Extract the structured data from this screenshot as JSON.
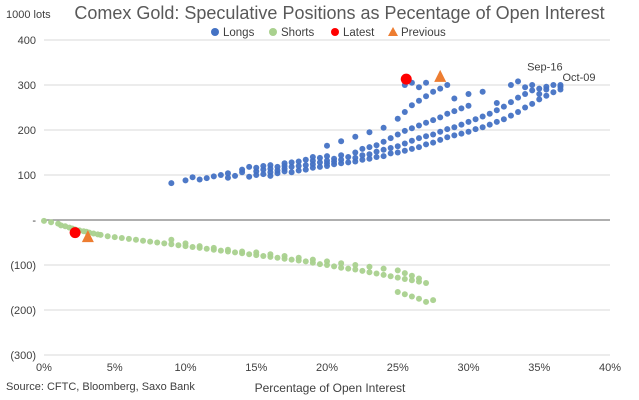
{
  "chart_data": {
    "type": "scatter",
    "title": "Comex Gold: Speculative Positions as Pecentage of Open Interest",
    "y_unit_label": "1000 lots",
    "xlabel": "Percentage  of Open Interest",
    "source": "Source: CFTC, Bloomberg, Saxo Bank",
    "xlim": [
      0,
      0.4
    ],
    "ylim": [
      -300,
      400
    ],
    "x_ticks": [
      0,
      0.05,
      0.1,
      0.15,
      0.2,
      0.25,
      0.3,
      0.35,
      0.4
    ],
    "x_tick_labels": [
      "0%",
      "5%",
      "10%",
      "15%",
      "20%",
      "25%",
      "30%",
      "35%",
      "40%"
    ],
    "y_ticks": [
      -300,
      -200,
      -100,
      0,
      100,
      200,
      300,
      400
    ],
    "y_tick_labels": [
      "(300)",
      "(200)",
      "(100)",
      "-",
      "100",
      "200",
      "300",
      "400"
    ],
    "grid": "horizontal",
    "legend_position": "top",
    "legend": [
      {
        "label": "Longs",
        "marker": "circle",
        "color": "#4472C4"
      },
      {
        "label": "Shorts",
        "marker": "circle",
        "color": "#A9D18E"
      },
      {
        "label": "Latest",
        "marker": "circle",
        "color": "#FF0000"
      },
      {
        "label": "Previous",
        "marker": "triangle",
        "color": "#ED7D31"
      }
    ],
    "series": [
      {
        "name": "Longs",
        "color": "#4472C4",
        "points": [
          [
            0.09,
            82
          ],
          [
            0.1,
            88
          ],
          [
            0.105,
            95
          ],
          [
            0.11,
            90
          ],
          [
            0.115,
            93
          ],
          [
            0.12,
            97
          ],
          [
            0.125,
            100
          ],
          [
            0.13,
            94
          ],
          [
            0.13,
            104
          ],
          [
            0.135,
            98
          ],
          [
            0.14,
            106
          ],
          [
            0.14,
            112
          ],
          [
            0.145,
            96
          ],
          [
            0.145,
            118
          ],
          [
            0.15,
            100
          ],
          [
            0.15,
            108
          ],
          [
            0.15,
            116
          ],
          [
            0.155,
            102
          ],
          [
            0.155,
            112
          ],
          [
            0.155,
            120
          ],
          [
            0.16,
            98
          ],
          [
            0.16,
            106
          ],
          [
            0.16,
            114
          ],
          [
            0.16,
            122
          ],
          [
            0.165,
            104
          ],
          [
            0.165,
            110
          ],
          [
            0.165,
            118
          ],
          [
            0.17,
            108
          ],
          [
            0.17,
            114
          ],
          [
            0.17,
            120
          ],
          [
            0.17,
            126
          ],
          [
            0.175,
            106
          ],
          [
            0.175,
            118
          ],
          [
            0.175,
            128
          ],
          [
            0.18,
            110
          ],
          [
            0.18,
            120
          ],
          [
            0.18,
            130
          ],
          [
            0.185,
            112
          ],
          [
            0.185,
            122
          ],
          [
            0.185,
            134
          ],
          [
            0.19,
            116
          ],
          [
            0.19,
            124
          ],
          [
            0.19,
            132
          ],
          [
            0.19,
            140
          ],
          [
            0.195,
            118
          ],
          [
            0.195,
            128
          ],
          [
            0.195,
            138
          ],
          [
            0.2,
            120
          ],
          [
            0.2,
            126
          ],
          [
            0.2,
            132
          ],
          [
            0.2,
            142
          ],
          [
            0.205,
            124
          ],
          [
            0.205,
            130
          ],
          [
            0.205,
            136
          ],
          [
            0.21,
            126
          ],
          [
            0.21,
            134
          ],
          [
            0.21,
            144
          ],
          [
            0.215,
            128
          ],
          [
            0.215,
            140
          ],
          [
            0.22,
            130
          ],
          [
            0.22,
            138
          ],
          [
            0.22,
            150
          ],
          [
            0.225,
            134
          ],
          [
            0.225,
            144
          ],
          [
            0.225,
            158
          ],
          [
            0.23,
            136
          ],
          [
            0.23,
            146
          ],
          [
            0.23,
            162
          ],
          [
            0.235,
            140
          ],
          [
            0.235,
            152
          ],
          [
            0.235,
            166
          ],
          [
            0.24,
            142
          ],
          [
            0.24,
            156
          ],
          [
            0.24,
            174
          ],
          [
            0.245,
            148
          ],
          [
            0.245,
            160
          ],
          [
            0.245,
            182
          ],
          [
            0.25,
            150
          ],
          [
            0.25,
            164
          ],
          [
            0.25,
            190
          ],
          [
            0.255,
            154
          ],
          [
            0.255,
            170
          ],
          [
            0.255,
            198
          ],
          [
            0.26,
            158
          ],
          [
            0.26,
            176
          ],
          [
            0.26,
            204
          ],
          [
            0.265,
            162
          ],
          [
            0.265,
            182
          ],
          [
            0.265,
            210
          ],
          [
            0.27,
            168
          ],
          [
            0.27,
            186
          ],
          [
            0.27,
            216
          ],
          [
            0.275,
            172
          ],
          [
            0.275,
            190
          ],
          [
            0.275,
            222
          ],
          [
            0.28,
            178
          ],
          [
            0.28,
            196
          ],
          [
            0.28,
            228
          ],
          [
            0.285,
            184
          ],
          [
            0.285,
            202
          ],
          [
            0.285,
            236
          ],
          [
            0.29,
            188
          ],
          [
            0.29,
            206
          ],
          [
            0.29,
            242
          ],
          [
            0.295,
            192
          ],
          [
            0.295,
            212
          ],
          [
            0.295,
            248
          ],
          [
            0.3,
            196
          ],
          [
            0.3,
            218
          ],
          [
            0.3,
            254
          ],
          [
            0.305,
            202
          ],
          [
            0.305,
            224
          ],
          [
            0.31,
            206
          ],
          [
            0.31,
            230
          ],
          [
            0.315,
            212
          ],
          [
            0.315,
            236
          ],
          [
            0.32,
            218
          ],
          [
            0.32,
            244
          ],
          [
            0.325,
            224
          ],
          [
            0.325,
            252
          ],
          [
            0.33,
            232
          ],
          [
            0.33,
            262
          ],
          [
            0.335,
            240
          ],
          [
            0.335,
            272
          ],
          [
            0.34,
            250
          ],
          [
            0.34,
            280
          ],
          [
            0.345,
            258
          ],
          [
            0.345,
            288
          ],
          [
            0.35,
            268
          ],
          [
            0.35,
            292
          ],
          [
            0.355,
            276
          ],
          [
            0.355,
            296
          ],
          [
            0.36,
            284
          ],
          [
            0.36,
            300
          ],
          [
            0.365,
            290
          ],
          [
            0.365,
            296
          ],
          [
            0.2,
            165
          ],
          [
            0.21,
            175
          ],
          [
            0.22,
            185
          ],
          [
            0.23,
            195
          ],
          [
            0.24,
            205
          ],
          [
            0.25,
            225
          ],
          [
            0.255,
            240
          ],
          [
            0.26,
            255
          ],
          [
            0.265,
            265
          ],
          [
            0.27,
            275
          ],
          [
            0.275,
            285
          ],
          [
            0.28,
            292
          ],
          [
            0.285,
            300
          ],
          [
            0.255,
            300
          ],
          [
            0.26,
            305
          ],
          [
            0.265,
            295
          ],
          [
            0.27,
            305
          ],
          [
            0.29,
            270
          ],
          [
            0.3,
            280
          ],
          [
            0.31,
            285
          ],
          [
            0.32,
            260
          ],
          [
            0.33,
            300
          ],
          [
            0.335,
            308
          ],
          [
            0.34,
            295
          ],
          [
            0.345,
            300
          ],
          [
            0.35,
            280
          ],
          [
            0.355,
            290
          ],
          [
            0.365,
            300
          ]
        ]
      },
      {
        "name": "Shorts",
        "color": "#A9D18E",
        "points": [
          [
            0.0,
            -2
          ],
          [
            0.005,
            -5
          ],
          [
            0.01,
            -8
          ],
          [
            0.012,
            -12
          ],
          [
            0.015,
            -14
          ],
          [
            0.018,
            -17
          ],
          [
            0.02,
            -19
          ],
          [
            0.022,
            -21
          ],
          [
            0.025,
            -23
          ],
          [
            0.028,
            -25
          ],
          [
            0.03,
            -26
          ],
          [
            0.032,
            -28
          ],
          [
            0.035,
            -30
          ],
          [
            0.038,
            -32
          ],
          [
            0.04,
            -33
          ],
          [
            0.045,
            -36
          ],
          [
            0.05,
            -38
          ],
          [
            0.055,
            -40
          ],
          [
            0.06,
            -42
          ],
          [
            0.065,
            -44
          ],
          [
            0.07,
            -46
          ],
          [
            0.075,
            -48
          ],
          [
            0.08,
            -50
          ],
          [
            0.085,
            -52
          ],
          [
            0.09,
            -54
          ],
          [
            0.095,
            -56
          ],
          [
            0.1,
            -58
          ],
          [
            0.105,
            -60
          ],
          [
            0.11,
            -62
          ],
          [
            0.115,
            -64
          ],
          [
            0.12,
            -66
          ],
          [
            0.125,
            -68
          ],
          [
            0.13,
            -70
          ],
          [
            0.135,
            -72
          ],
          [
            0.14,
            -74
          ],
          [
            0.145,
            -76
          ],
          [
            0.15,
            -78
          ],
          [
            0.155,
            -80
          ],
          [
            0.16,
            -82
          ],
          [
            0.165,
            -84
          ],
          [
            0.17,
            -86
          ],
          [
            0.175,
            -88
          ],
          [
            0.18,
            -90
          ],
          [
            0.185,
            -92
          ],
          [
            0.19,
            -95
          ],
          [
            0.195,
            -98
          ],
          [
            0.2,
            -100
          ],
          [
            0.205,
            -103
          ],
          [
            0.21,
            -106
          ],
          [
            0.215,
            -108
          ],
          [
            0.22,
            -110
          ],
          [
            0.225,
            -113
          ],
          [
            0.23,
            -116
          ],
          [
            0.235,
            -119
          ],
          [
            0.24,
            -122
          ],
          [
            0.245,
            -125
          ],
          [
            0.25,
            -128
          ],
          [
            0.255,
            -131
          ],
          [
            0.26,
            -134
          ],
          [
            0.265,
            -137
          ],
          [
            0.27,
            -140
          ],
          [
            0.09,
            -44
          ],
          [
            0.1,
            -52
          ],
          [
            0.11,
            -58
          ],
          [
            0.12,
            -62
          ],
          [
            0.13,
            -66
          ],
          [
            0.14,
            -70
          ],
          [
            0.15,
            -72
          ],
          [
            0.16,
            -76
          ],
          [
            0.17,
            -80
          ],
          [
            0.18,
            -84
          ],
          [
            0.19,
            -88
          ],
          [
            0.2,
            -92
          ],
          [
            0.21,
            -96
          ],
          [
            0.22,
            -100
          ],
          [
            0.23,
            -104
          ],
          [
            0.24,
            -108
          ],
          [
            0.25,
            -112
          ],
          [
            0.255,
            -118
          ],
          [
            0.26,
            -124
          ],
          [
            0.265,
            -130
          ],
          [
            0.26,
            -170
          ],
          [
            0.265,
            -175
          ],
          [
            0.27,
            -182
          ],
          [
            0.275,
            -178
          ],
          [
            0.25,
            -160
          ],
          [
            0.255,
            -165
          ]
        ]
      },
      {
        "name": "Latest",
        "color": "#FF0000",
        "points": [
          [
            0.256,
            313
          ],
          [
            0.022,
            -28
          ]
        ]
      },
      {
        "name": "Previous",
        "color": "#ED7D31",
        "points": [
          [
            0.28,
            318
          ],
          [
            0.031,
            -38
          ]
        ]
      }
    ],
    "annotations": [
      {
        "text": "Sep-16",
        "x": 0.34,
        "y": 323
      },
      {
        "text": "Oct-09",
        "x": 0.365,
        "y": 300
      }
    ]
  }
}
